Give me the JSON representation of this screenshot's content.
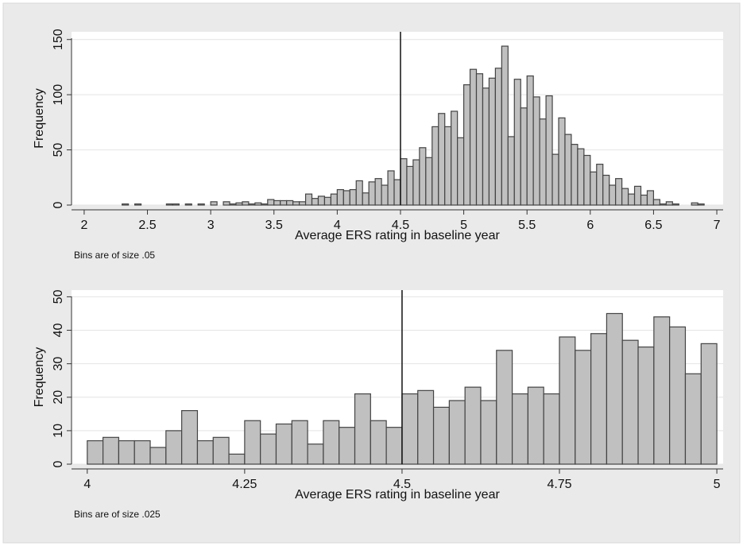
{
  "chart_data": [
    {
      "type": "histogram",
      "x_label": "Average ERS rating in baseline year",
      "y_label": "Frequency",
      "note": "Bins are of size .05",
      "bins": [
        2.3,
        2.35,
        2.4,
        2.45,
        2.5,
        2.55,
        2.6,
        2.65,
        2.7,
        2.75,
        2.8,
        2.85,
        2.9,
        2.95,
        3,
        3.05,
        3.1,
        3.15,
        3.2,
        3.25,
        3.3,
        3.35,
        3.4,
        3.45,
        3.5,
        3.55,
        3.6,
        3.65,
        3.7,
        3.75,
        3.8,
        3.85,
        3.9,
        3.95,
        4,
        4.05,
        4.1,
        4.15,
        4.2,
        4.25,
        4.3,
        4.35,
        4.4,
        4.45,
        4.5,
        4.55,
        4.6,
        4.65,
        4.7,
        4.75,
        4.8,
        4.85,
        4.9,
        4.95,
        5,
        5.05,
        5.1,
        5.15,
        5.2,
        5.25,
        5.3,
        5.35,
        5.4,
        5.45,
        5.5,
        5.55,
        5.6,
        5.65,
        5.7,
        5.75,
        5.8,
        5.85,
        5.9,
        5.95,
        6,
        6.05,
        6.1,
        6.15,
        6.2,
        6.25,
        6.3,
        6.35,
        6.4,
        6.45,
        6.5,
        6.55,
        6.6,
        6.65,
        6.7,
        6.75,
        6.8,
        6.85,
        6.9
      ],
      "values": [
        1,
        0,
        1,
        0,
        0,
        0,
        0,
        1,
        1,
        0,
        1,
        0,
        1,
        0,
        3,
        0,
        3,
        1,
        2,
        3,
        1,
        2,
        1,
        5,
        4,
        4,
        4,
        3,
        3,
        10,
        6,
        8,
        7,
        10,
        14,
        13,
        14,
        22,
        11,
        21,
        24,
        18,
        31,
        23,
        42,
        35,
        41,
        52,
        43,
        71,
        83,
        71,
        85,
        61,
        109,
        123,
        119,
        106,
        115,
        124,
        144,
        62,
        114,
        88,
        117,
        98,
        78,
        99,
        46,
        79,
        64,
        55,
        51,
        45,
        30,
        37,
        27,
        18,
        24,
        15,
        10,
        17,
        9,
        13,
        5,
        1,
        3,
        1,
        0,
        0,
        2,
        1
      ],
      "color": "#c0c0c0",
      "xline": 4.5,
      "xlim": [
        1.9,
        7.05
      ],
      "ylim": [
        0,
        157
      ],
      "xticks": [
        2,
        2.5,
        3,
        3.5,
        4,
        4.5,
        5,
        5.5,
        6,
        6.5,
        7
      ],
      "yticks": [
        0,
        50,
        100,
        150
      ],
      "grid": true
    },
    {
      "type": "histogram",
      "x_label": "Average ERS rating in baseline year",
      "y_label": "Frequency",
      "note": "Bins are of size .025",
      "bins": [
        4,
        4.025,
        4.05,
        4.075,
        4.1,
        4.125,
        4.15,
        4.175,
        4.2,
        4.225,
        4.25,
        4.275,
        4.3,
        4.325,
        4.35,
        4.375,
        4.4,
        4.425,
        4.45,
        4.475,
        4.5,
        4.525,
        4.55,
        4.575,
        4.6,
        4.625,
        4.65,
        4.675,
        4.7,
        4.725,
        4.75,
        4.775,
        4.8,
        4.825,
        4.85,
        4.875,
        4.9,
        4.925,
        4.95,
        4.975,
        5
      ],
      "values": [
        7,
        8,
        7,
        7,
        5,
        10,
        16,
        7,
        8,
        3,
        13,
        9,
        12,
        13,
        6,
        13,
        11,
        21,
        13,
        11,
        21,
        22,
        17,
        19,
        23,
        19,
        34,
        21,
        23,
        21,
        38,
        34,
        39,
        45,
        37,
        35,
        44,
        41,
        27,
        36
      ],
      "color": "#c0c0c0",
      "xline": 4.5,
      "xlim": [
        3.975,
        5.01
      ],
      "ylim": [
        0,
        52
      ],
      "xticks": [
        4,
        4.25,
        4.5,
        4.75,
        5
      ],
      "yticks": [
        0,
        10,
        20,
        30,
        40,
        50
      ],
      "grid": true
    }
  ]
}
